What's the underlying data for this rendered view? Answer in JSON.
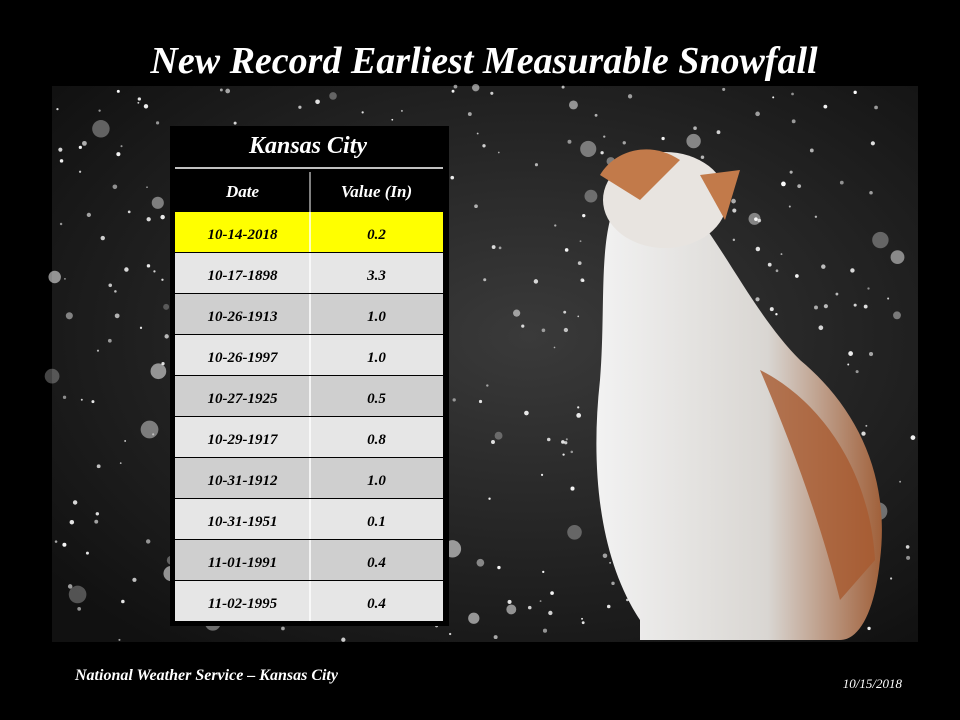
{
  "title": "New Record Earliest Measurable Snowfall",
  "table": {
    "title": "Kansas City",
    "columns": [
      "Date",
      "Value (In)"
    ],
    "rows": [
      [
        "10-14-2018",
        "0.2"
      ],
      [
        "10-17-1898",
        "3.3"
      ],
      [
        "10-26-1913",
        "1.0"
      ],
      [
        "10-26-1997",
        "1.0"
      ],
      [
        "10-27-1925",
        "0.5"
      ],
      [
        "10-29-1917",
        "0.8"
      ],
      [
        "10-31-1912",
        "1.0"
      ],
      [
        "10-31-1951",
        "0.1"
      ],
      [
        "11-01-1991",
        "0.4"
      ],
      [
        "11-02-1995",
        "0.4"
      ]
    ]
  },
  "footer": {
    "source": "National Weather Service – Kansas City",
    "date": "10/15/2018"
  }
}
